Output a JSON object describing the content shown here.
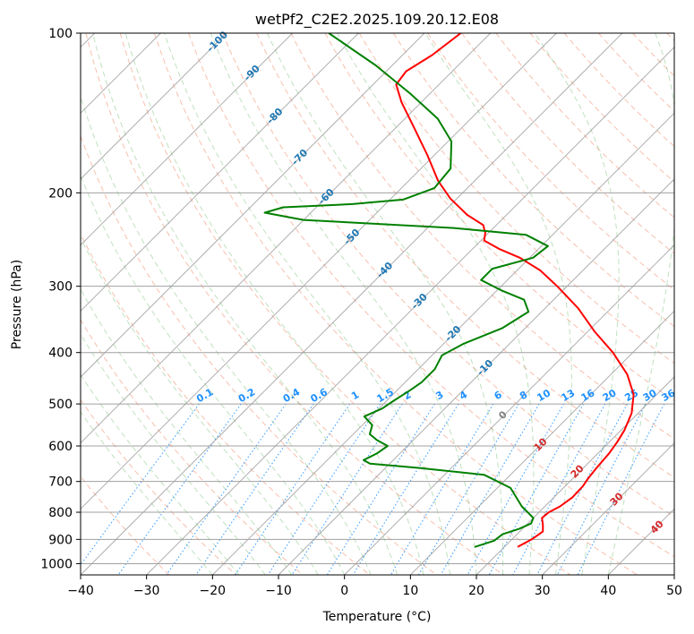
{
  "chart_data": {
    "type": "line",
    "title": "wetPf2_C2E2.2025.109.20.12.E08",
    "xlabel": "Temperature (°C)",
    "ylabel": "Pressure (hPa)",
    "xlim": [
      -40,
      50
    ],
    "ylim": [
      1050,
      100
    ],
    "y_scale": "log",
    "skew": "skew-T log-p diagram",
    "grid": true,
    "x_ticks": [
      "−40",
      "−30",
      "−20",
      "−10",
      "0",
      "10",
      "20",
      "30",
      "40",
      "50"
    ],
    "y_ticks": [
      "100",
      "200",
      "300",
      "400",
      "500",
      "600",
      "700",
      "800",
      "900",
      "1000"
    ],
    "colors": {
      "temperature": "#ff0000",
      "dewpoint": "#008000",
      "isotherm_labels": "#1f77b4",
      "mixing_ratio": "#1e90ff",
      "dry_adiabat_labels": "#d62728",
      "moist_adiabat_label": "#808080"
    },
    "series": [
      {
        "color": "#ff0000",
        "points": [
          {
            "p": 930,
            "t": 22.0
          },
          {
            "p": 900,
            "t": 23.0
          },
          {
            "p": 870,
            "t": 23.5
          },
          {
            "p": 845,
            "t": 22.5
          },
          {
            "p": 820,
            "t": 21.3
          },
          {
            "p": 800,
            "t": 21.5
          },
          {
            "p": 780,
            "t": 22.3
          },
          {
            "p": 750,
            "t": 22.8
          },
          {
            "p": 715,
            "t": 22.7
          },
          {
            "p": 690,
            "t": 22.3
          },
          {
            "p": 660,
            "t": 22.0
          },
          {
            "p": 620,
            "t": 21.7
          },
          {
            "p": 590,
            "t": 21.2
          },
          {
            "p": 560,
            "t": 20.5
          },
          {
            "p": 520,
            "t": 19.0
          },
          {
            "p": 480,
            "t": 16.5
          },
          {
            "p": 440,
            "t": 12.5
          },
          {
            "p": 400,
            "t": 7.0
          },
          {
            "p": 365,
            "t": 1.0
          },
          {
            "p": 330,
            "t": -5.0
          },
          {
            "p": 300,
            "t": -11.5
          },
          {
            "p": 280,
            "t": -16.5
          },
          {
            "p": 265,
            "t": -21.5
          },
          {
            "p": 255,
            "t": -26.0
          },
          {
            "p": 246,
            "t": -29.5
          },
          {
            "p": 238,
            "t": -30.5
          },
          {
            "p": 230,
            "t": -32.0
          },
          {
            "p": 220,
            "t": -36.0
          },
          {
            "p": 205,
            "t": -41.0
          },
          {
            "p": 190,
            "t": -45.5
          },
          {
            "p": 170,
            "t": -51.0
          },
          {
            "p": 150,
            "t": -57.5
          },
          {
            "p": 135,
            "t": -63.0
          },
          {
            "p": 125,
            "t": -66.5
          },
          {
            "p": 118,
            "t": -67.0
          },
          {
            "p": 110,
            "t": -65.5
          },
          {
            "p": 100,
            "t": -64.5
          }
        ]
      },
      {
        "color": "#008000",
        "points": [
          {
            "p": 930,
            "t": 15.5
          },
          {
            "p": 905,
            "t": 17.5
          },
          {
            "p": 880,
            "t": 17.8
          },
          {
            "p": 860,
            "t": 19.5
          },
          {
            "p": 840,
            "t": 20.5
          },
          {
            "p": 820,
            "t": 20.0
          },
          {
            "p": 780,
            "t": 16.5
          },
          {
            "p": 720,
            "t": 12.0
          },
          {
            "p": 680,
            "t": 6.0
          },
          {
            "p": 660,
            "t": -5.0
          },
          {
            "p": 648,
            "t": -13.0
          },
          {
            "p": 638,
            "t": -14.5
          },
          {
            "p": 620,
            "t": -13.5
          },
          {
            "p": 600,
            "t": -13.0
          },
          {
            "p": 585,
            "t": -15.5
          },
          {
            "p": 570,
            "t": -17.5
          },
          {
            "p": 548,
            "t": -18.5
          },
          {
            "p": 528,
            "t": -21.0
          },
          {
            "p": 510,
            "t": -19.5
          },
          {
            "p": 495,
            "t": -19.0
          },
          {
            "p": 470,
            "t": -18.0
          },
          {
            "p": 455,
            "t": -17.5
          },
          {
            "p": 430,
            "t": -17.5
          },
          {
            "p": 405,
            "t": -18.5
          },
          {
            "p": 385,
            "t": -17.0
          },
          {
            "p": 360,
            "t": -13.5
          },
          {
            "p": 335,
            "t": -12.0
          },
          {
            "p": 318,
            "t": -14.5
          },
          {
            "p": 305,
            "t": -19.5
          },
          {
            "p": 292,
            "t": -24.0
          },
          {
            "p": 278,
            "t": -24.0
          },
          {
            "p": 265,
            "t": -19.5
          },
          {
            "p": 252,
            "t": -19.0
          },
          {
            "p": 240,
            "t": -24.0
          },
          {
            "p": 233,
            "t": -36.0
          },
          {
            "p": 225,
            "t": -60.0
          },
          {
            "p": 218,
            "t": -67.0
          },
          {
            "p": 213,
            "t": -65.0
          },
          {
            "p": 210,
            "t": -55.0
          },
          {
            "p": 206,
            "t": -48.0
          },
          {
            "p": 196,
            "t": -45.0
          },
          {
            "p": 180,
            "t": -45.5
          },
          {
            "p": 160,
            "t": -49.5
          },
          {
            "p": 145,
            "t": -55.0
          },
          {
            "p": 130,
            "t": -63.0
          },
          {
            "p": 115,
            "t": -72.5
          },
          {
            "p": 100,
            "t": -84.5
          }
        ]
      }
    ],
    "isotherm_labels": [
      {
        "text": "-100",
        "t": -100
      },
      {
        "text": "-90",
        "t": -90
      },
      {
        "text": "-80",
        "t": -80
      },
      {
        "text": "-70",
        "t": -70
      },
      {
        "text": "-60",
        "t": -60
      },
      {
        "text": "-50",
        "t": -50
      },
      {
        "text": "-40",
        "t": -40
      },
      {
        "text": "-30",
        "t": -30
      },
      {
        "text": "-20",
        "t": -20
      },
      {
        "text": "-10",
        "t": -10
      }
    ],
    "mixing_ratio_labels": [
      "0.1",
      "0.2",
      "0.4",
      "0.6",
      "1",
      "1.5",
      "2",
      "3",
      "4",
      "6",
      "8",
      "10",
      "13",
      "16",
      "20",
      "25",
      "30",
      "36"
    ],
    "dry_adiabat_labels": [
      "10",
      "20",
      "30",
      "40"
    ],
    "moist_adiabat_labels": [
      "0"
    ]
  }
}
